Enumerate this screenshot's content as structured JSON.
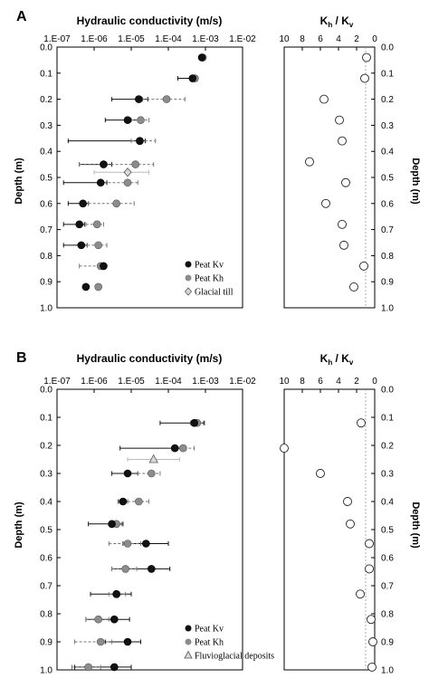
{
  "colors": {
    "kv": "#111111",
    "kh": "#8c8c8c",
    "open": "#ffffff",
    "till": "#d9d9d9",
    "guide": "#999999"
  },
  "chart_data": [
    {
      "panel": "A",
      "type": "scatter",
      "title": "Hydraulic conductivity (m/s)",
      "xlabel": "",
      "ylabel": "Depth (m)",
      "xscale": "log",
      "xlim": [
        1e-07,
        0.01
      ],
      "xticks": [
        "1.E-07",
        "1.E-06",
        "1.E-05",
        "1.E-04",
        "1.E-03",
        "1.E-02"
      ],
      "ylim": [
        0,
        1.0
      ],
      "yticks": [
        "0.0",
        "0.1",
        "0.2",
        "0.3",
        "0.4",
        "0.5",
        "0.6",
        "0.7",
        "0.8",
        "0.9",
        "1.0"
      ],
      "legend": {
        "position": "bottom-right",
        "entries": [
          "Peat Kv",
          "Peat Kh",
          "Glacial till"
        ]
      },
      "series": [
        {
          "name": "Peat Kv",
          "marker": "filled-black",
          "points": [
            {
              "depth": 0.04,
              "k": 0.0008,
              "lo": 0.0007,
              "hi": 0.0009
            },
            {
              "depth": 0.12,
              "k": 0.00045,
              "lo": 0.00018,
              "hi": 0.00055
            },
            {
              "depth": 0.2,
              "k": 1.6e-05,
              "lo": 3e-06,
              "hi": 2.8e-05
            },
            {
              "depth": 0.28,
              "k": 8e-06,
              "lo": 2e-06,
              "hi": 1.8e-05
            },
            {
              "depth": 0.36,
              "k": 1.7e-05,
              "lo": 2e-07,
              "hi": 2.4e-05
            },
            {
              "depth": 0.45,
              "k": 1.8e-06,
              "lo": 4e-07,
              "hi": 3e-06
            },
            {
              "depth": 0.52,
              "k": 1.5e-06,
              "lo": 1.5e-07,
              "hi": 2.2e-06
            },
            {
              "depth": 0.6,
              "k": 5e-07,
              "lo": 2e-07,
              "hi": 7e-07
            },
            {
              "depth": 0.68,
              "k": 4e-07,
              "lo": 1.5e-07,
              "hi": 5.5e-07
            },
            {
              "depth": 0.76,
              "k": 4.5e-07,
              "lo": 1.5e-07,
              "hi": 6.5e-07
            },
            {
              "depth": 0.84,
              "k": 1.8e-06,
              "lo": 1.5e-06,
              "hi": 2e-06
            },
            {
              "depth": 0.92,
              "k": 6e-07,
              "lo": 5.5e-07,
              "hi": 6.5e-07
            }
          ]
        },
        {
          "name": "Peat Kh",
          "marker": "filled-gray",
          "points": [
            {
              "depth": 0.04,
              "k": 0.00085,
              "lo": 0.0008,
              "hi": 0.00095
            },
            {
              "depth": 0.12,
              "k": 0.00052,
              "lo": 0.00045,
              "hi": 0.0006
            },
            {
              "depth": 0.2,
              "k": 9e-05,
              "lo": 2e-05,
              "hi": 0.00028
            },
            {
              "depth": 0.28,
              "k": 1.8e-05,
              "lo": 1e-05,
              "hi": 3e-05
            },
            {
              "depth": 0.36,
              "k": 1.7e-05,
              "lo": 1e-05,
              "hi": 4.5e-05
            },
            {
              "depth": 0.45,
              "k": 1.3e-05,
              "lo": 4e-07,
              "hi": 4e-05
            },
            {
              "depth": 0.52,
              "k": 8e-06,
              "lo": 1.8e-06,
              "hi": 1.5e-05
            },
            {
              "depth": 0.6,
              "k": 4e-06,
              "lo": 7e-07,
              "hi": 1.2e-05
            },
            {
              "depth": 0.68,
              "k": 1.2e-06,
              "lo": 6e-07,
              "hi": 1.8e-06
            },
            {
              "depth": 0.76,
              "k": 1.3e-06,
              "lo": 6.5e-07,
              "hi": 2.2e-06
            },
            {
              "depth": 0.84,
              "k": 1.5e-06,
              "lo": 4e-07,
              "hi": 2e-06
            },
            {
              "depth": 0.92,
              "k": 1.3e-06,
              "lo": 1.2e-06,
              "hi": 1.4e-06
            }
          ]
        },
        {
          "name": "Glacial till",
          "marker": "diamond",
          "points": [
            {
              "depth": 0.48,
              "k": 8e-06,
              "lo": 1e-06,
              "hi": 3e-05
            }
          ]
        }
      ]
    },
    {
      "panel": "A",
      "type": "scatter",
      "title": "Kh / Kv",
      "xlabel": "",
      "ylabel": "Depth (m)",
      "xreversed": true,
      "xlim": [
        10,
        0
      ],
      "xticks": [
        "10",
        "8",
        "6",
        "4",
        "2",
        "0"
      ],
      "ylim": [
        0,
        1.0
      ],
      "yticks": [
        "0.0",
        "0.1",
        "0.2",
        "0.3",
        "0.4",
        "0.5",
        "0.6",
        "0.7",
        "0.8",
        "0.9",
        "1.0"
      ],
      "reference_line": 1,
      "points": [
        {
          "depth": 0.04,
          "ratio": 0.9
        },
        {
          "depth": 0.12,
          "ratio": 1.1
        },
        {
          "depth": 0.2,
          "ratio": 5.6
        },
        {
          "depth": 0.28,
          "ratio": 3.9
        },
        {
          "depth": 0.36,
          "ratio": 3.6
        },
        {
          "depth": 0.44,
          "ratio": 7.2
        },
        {
          "depth": 0.52,
          "ratio": 3.2
        },
        {
          "depth": 0.6,
          "ratio": 5.4
        },
        {
          "depth": 0.68,
          "ratio": 3.6
        },
        {
          "depth": 0.76,
          "ratio": 3.4
        },
        {
          "depth": 0.84,
          "ratio": 1.2
        },
        {
          "depth": 0.92,
          "ratio": 2.3
        }
      ]
    },
    {
      "panel": "B",
      "type": "scatter",
      "title": "Hydraulic conductivity (m/s)",
      "xlabel": "",
      "ylabel": "Depth (m)",
      "xscale": "log",
      "xlim": [
        1e-07,
        0.01
      ],
      "xticks": [
        "1.E-07",
        "1.E-06",
        "1.E-05",
        "1.E-04",
        "1.E-03",
        "1.E-02"
      ],
      "ylim": [
        0,
        1.0
      ],
      "yticks": [
        "0.0",
        "0.1",
        "0.2",
        "0.3",
        "0.4",
        "0.5",
        "0.6",
        "0.7",
        "0.8",
        "0.9",
        "1.0"
      ],
      "legend": {
        "position": "bottom-right",
        "entries": [
          "Peat Kv",
          "Peat Kh",
          "Fluvioglacial deposits"
        ]
      },
      "series": [
        {
          "name": "Peat Kv",
          "marker": "filled-black",
          "points": [
            {
              "depth": 0.12,
              "k": 0.0005,
              "lo": 6e-05,
              "hi": 0.0009
            },
            {
              "depth": 0.21,
              "k": 0.00015,
              "lo": 5e-06,
              "hi": 0.0003
            },
            {
              "depth": 0.3,
              "k": 8e-06,
              "lo": 3e-06,
              "hi": 1.5e-05
            },
            {
              "depth": 0.4,
              "k": 6e-06,
              "lo": 4.5e-06,
              "hi": 8e-06
            },
            {
              "depth": 0.48,
              "k": 3e-06,
              "lo": 7e-07,
              "hi": 6e-06
            },
            {
              "depth": 0.55,
              "k": 2.5e-05,
              "lo": 6e-06,
              "hi": 0.0001
            },
            {
              "depth": 0.64,
              "k": 3.5e-05,
              "lo": 3e-06,
              "hi": 0.00011
            },
            {
              "depth": 0.73,
              "k": 4e-06,
              "lo": 8e-07,
              "hi": 1e-05
            },
            {
              "depth": 0.82,
              "k": 3.5e-06,
              "lo": 6e-07,
              "hi": 9e-06
            },
            {
              "depth": 0.9,
              "k": 8e-06,
              "lo": 2e-06,
              "hi": 1.8e-05
            },
            {
              "depth": 0.99,
              "k": 3.5e-06,
              "lo": 3e-07,
              "hi": 1e-05
            }
          ]
        },
        {
          "name": "Peat Kh",
          "marker": "filled-gray",
          "points": [
            {
              "depth": 0.12,
              "k": 0.0006,
              "lo": 0.0004,
              "hi": 0.00095
            },
            {
              "depth": 0.21,
              "k": 0.00025,
              "lo": 0.00015,
              "hi": 0.0005
            },
            {
              "depth": 0.3,
              "k": 3.5e-05,
              "lo": 1.5e-05,
              "hi": 6e-05
            },
            {
              "depth": 0.4,
              "k": 1.6e-05,
              "lo": 8e-06,
              "hi": 3e-05
            },
            {
              "depth": 0.48,
              "k": 4e-06,
              "lo": 3e-06,
              "hi": 5.5e-06
            },
            {
              "depth": 0.55,
              "k": 8e-06,
              "lo": 2.5e-06,
              "hi": 1.8e-05
            },
            {
              "depth": 0.64,
              "k": 7e-06,
              "lo": 3e-06,
              "hi": 1.4e-05
            },
            {
              "depth": 0.73,
              "k": 4e-06,
              "lo": 2.5e-06,
              "hi": 7e-06
            },
            {
              "depth": 0.82,
              "k": 1.3e-06,
              "lo": 6e-07,
              "hi": 2.5e-06
            },
            {
              "depth": 0.9,
              "k": 1.5e-06,
              "lo": 3e-07,
              "hi": 3e-06
            },
            {
              "depth": 0.99,
              "k": 7e-07,
              "lo": 2.5e-07,
              "hi": 1.5e-06
            }
          ]
        },
        {
          "name": "Fluvioglacial deposits",
          "marker": "triangle",
          "points": [
            {
              "depth": 0.25,
              "k": 4e-05,
              "lo": 8e-06,
              "hi": 0.0002
            }
          ]
        }
      ]
    },
    {
      "panel": "B",
      "type": "scatter",
      "title": "Kh / Kv",
      "xlabel": "",
      "ylabel": "Depth (m)",
      "xreversed": true,
      "xlim": [
        10,
        0
      ],
      "xticks": [
        "10",
        "8",
        "6",
        "4",
        "2",
        "0"
      ],
      "ylim": [
        0,
        1.0
      ],
      "yticks": [
        "0.0",
        "0.1",
        "0.2",
        "0.3",
        "0.4",
        "0.5",
        "0.6",
        "0.7",
        "0.8",
        "0.9",
        "1.0"
      ],
      "reference_line": 1,
      "points": [
        {
          "depth": 0.12,
          "ratio": 1.5
        },
        {
          "depth": 0.21,
          "ratio": 10.0
        },
        {
          "depth": 0.3,
          "ratio": 6.0
        },
        {
          "depth": 0.4,
          "ratio": 3.0
        },
        {
          "depth": 0.48,
          "ratio": 2.7
        },
        {
          "depth": 0.55,
          "ratio": 0.6
        },
        {
          "depth": 0.64,
          "ratio": 0.6
        },
        {
          "depth": 0.73,
          "ratio": 1.6
        },
        {
          "depth": 0.82,
          "ratio": 0.4
        },
        {
          "depth": 0.9,
          "ratio": 0.2
        },
        {
          "depth": 0.99,
          "ratio": 0.3
        }
      ]
    }
  ]
}
